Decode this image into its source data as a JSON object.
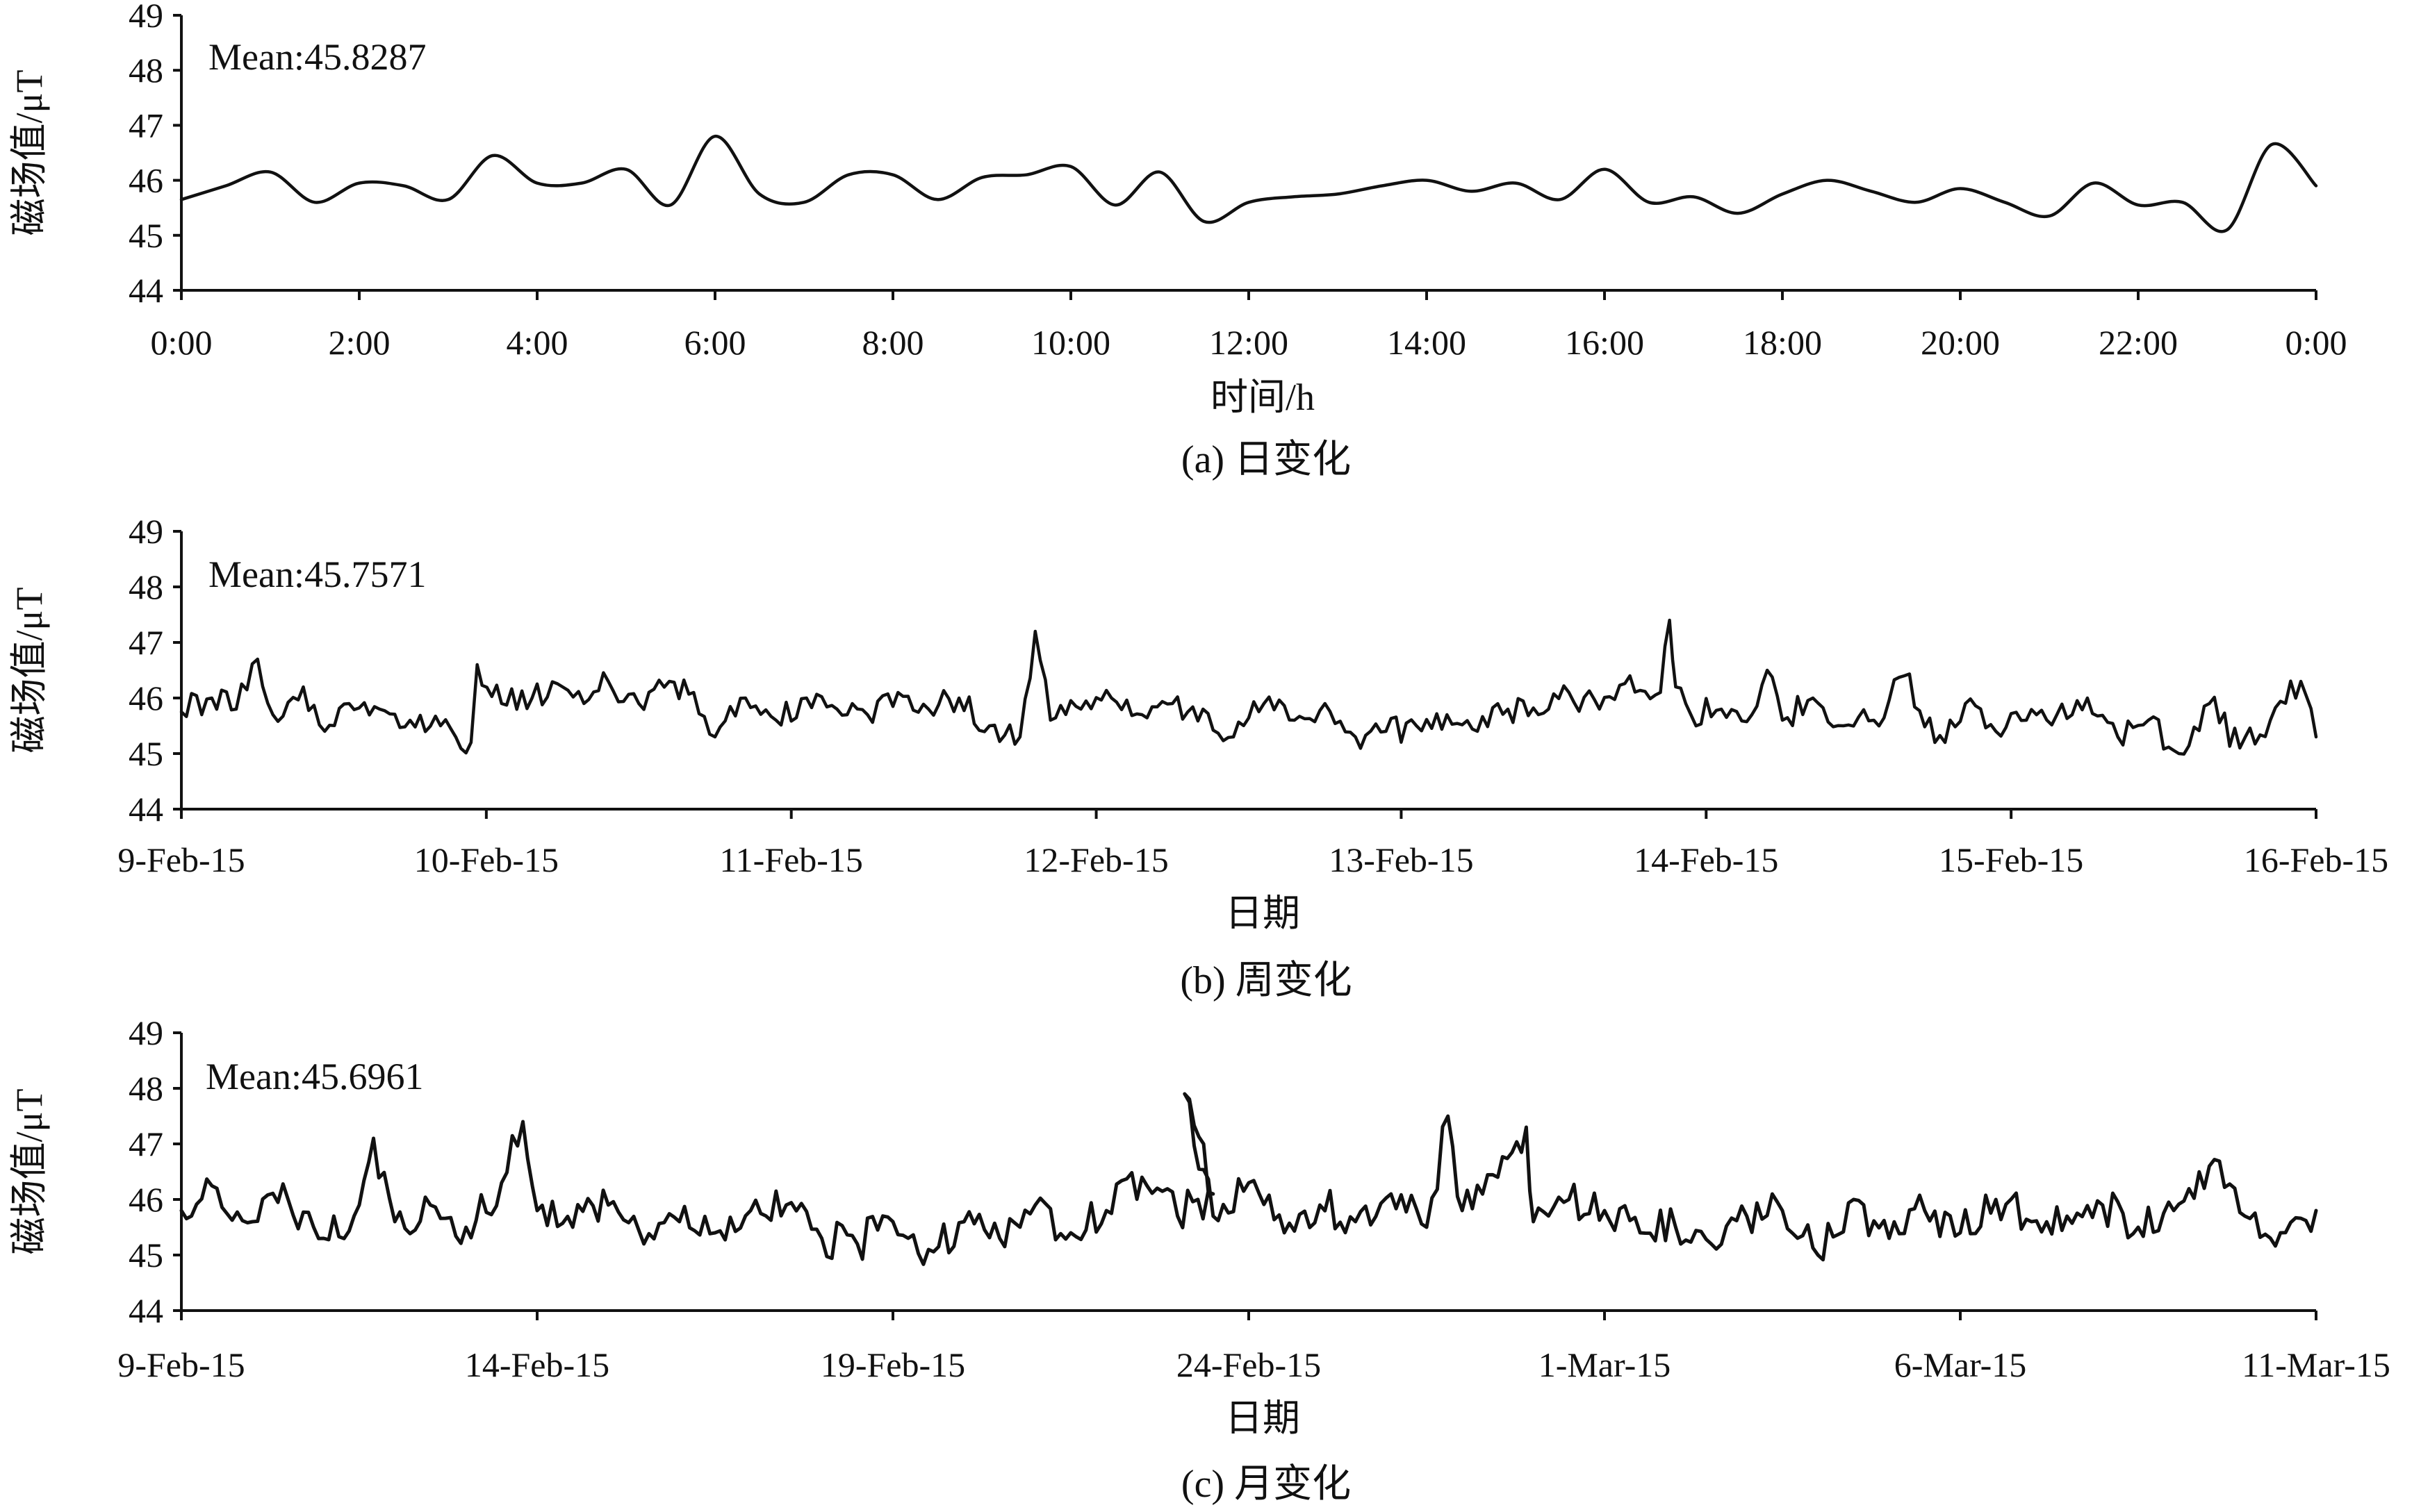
{
  "chart_data": [
    {
      "type": "line",
      "caption": "(a) 日变化",
      "xlabel": "时间/h",
      "ylabel": "磁场值/μT",
      "annotation": "Mean:45.8287",
      "ylim": [
        44,
        49
      ],
      "yticks": [
        "44",
        "45",
        "46",
        "47",
        "48",
        "49"
      ],
      "xlim": [
        0,
        24
      ],
      "xticks": [
        {
          "v": 0,
          "label": "0:00"
        },
        {
          "v": 2,
          "label": "2:00"
        },
        {
          "v": 4,
          "label": "4:00"
        },
        {
          "v": 6,
          "label": "6:00"
        },
        {
          "v": 8,
          "label": "8:00"
        },
        {
          "v": 10,
          "label": "10:00"
        },
        {
          "v": 12,
          "label": "12:00"
        },
        {
          "v": 14,
          "label": "14:00"
        },
        {
          "v": 16,
          "label": "16:00"
        },
        {
          "v": 18,
          "label": "18:00"
        },
        {
          "v": 20,
          "label": "20:00"
        },
        {
          "v": 22,
          "label": "22:00"
        },
        {
          "v": 24,
          "label": "0:00"
        }
      ],
      "series": [
        {
          "x": [
            0,
            0.5,
            1.0,
            1.5,
            2.0,
            2.5,
            3.0,
            3.5,
            4.0,
            4.5,
            5.0,
            5.5,
            6.0,
            6.5,
            7.0,
            7.5,
            8.0,
            8.5,
            9.0,
            9.5,
            10.0,
            10.5,
            11.0,
            11.5,
            12.0,
            12.5,
            13.0,
            13.5,
            14.0,
            14.5,
            15.0,
            15.5,
            16.0,
            16.5,
            17.0,
            17.5,
            18.0,
            18.5,
            19.0,
            19.5,
            20.0,
            20.5,
            21.0,
            21.5,
            22.0,
            22.5,
            23.0,
            23.5,
            24.0
          ],
          "y": [
            45.65,
            45.9,
            46.15,
            45.6,
            45.95,
            45.9,
            45.65,
            46.45,
            45.95,
            45.95,
            46.2,
            45.55,
            46.8,
            45.75,
            45.6,
            46.1,
            46.1,
            45.65,
            46.05,
            46.1,
            46.25,
            45.55,
            46.15,
            45.25,
            45.6,
            45.7,
            45.75,
            45.9,
            46.0,
            45.8,
            45.95,
            45.65,
            46.2,
            45.6,
            45.7,
            45.4,
            45.75,
            46.0,
            45.8,
            45.6,
            45.85,
            45.6,
            45.35,
            45.95,
            45.55,
            45.6,
            45.1,
            46.65,
            45.9
          ]
        }
      ]
    },
    {
      "type": "line",
      "caption": "(b) 周变化",
      "xlabel": "日期",
      "ylabel": "磁场值/μT",
      "annotation": "Mean:45.7571",
      "ylim": [
        44,
        49
      ],
      "yticks": [
        "44",
        "45",
        "46",
        "47",
        "48",
        "49"
      ],
      "xlim": [
        0,
        7
      ],
      "xticks": [
        {
          "v": 0,
          "label": "9-Feb-15"
        },
        {
          "v": 1,
          "label": "10-Feb-15"
        },
        {
          "v": 2,
          "label": "11-Feb-15"
        },
        {
          "v": 3,
          "label": "12-Feb-15"
        },
        {
          "v": 4,
          "label": "13-Feb-15"
        },
        {
          "v": 5,
          "label": "14-Feb-15"
        },
        {
          "v": 6,
          "label": "15-Feb-15"
        },
        {
          "v": 7,
          "label": "16-Feb-15"
        }
      ],
      "series": [
        {
          "x": [
            0,
            0.1,
            0.18,
            0.25,
            0.3,
            0.4,
            0.47,
            0.55,
            0.65,
            0.75,
            0.85,
            0.95,
            0.97,
            1.05,
            1.15,
            1.25,
            1.32,
            1.4,
            1.5,
            1.6,
            1.68,
            1.75,
            1.85,
            1.95,
            2.05,
            2.15,
            2.25,
            2.35,
            2.45,
            2.55,
            2.65,
            2.75,
            2.8,
            2.85,
            2.95,
            3.05,
            3.15,
            3.25,
            3.35,
            3.45,
            3.55,
            3.65,
            3.75,
            3.85,
            3.95,
            4.05,
            4.15,
            4.25,
            4.35,
            4.45,
            4.55,
            4.65,
            4.75,
            4.85,
            4.88,
            4.9,
            4.95,
            5.05,
            5.15,
            5.2,
            5.25,
            5.35,
            5.45,
            5.55,
            5.65,
            5.75,
            5.85,
            5.95,
            6.05,
            6.15,
            6.25,
            6.35,
            6.45,
            6.55,
            6.65,
            6.75,
            6.85,
            6.95,
            7.0
          ],
          "y": [
            45.75,
            46.0,
            45.8,
            46.7,
            45.7,
            46.2,
            45.4,
            45.9,
            45.8,
            45.6,
            45.5,
            45.2,
            46.6,
            45.9,
            46.0,
            46.2,
            45.9,
            46.3,
            45.9,
            46.3,
            46.1,
            45.3,
            46.0,
            45.6,
            46.0,
            45.8,
            45.7,
            46.1,
            45.8,
            46.0,
            45.5,
            45.3,
            47.2,
            45.6,
            45.8,
            46.0,
            45.7,
            45.9,
            45.8,
            45.3,
            45.9,
            45.6,
            45.9,
            45.3,
            45.4,
            45.5,
            45.7,
            45.4,
            45.8,
            45.7,
            46.1,
            45.8,
            46.4,
            46.1,
            47.4,
            46.2,
            45.7,
            45.8,
            45.7,
            46.5,
            45.6,
            46.0,
            45.5,
            45.6,
            46.4,
            45.2,
            45.9,
            45.4,
            45.6,
            45.7,
            46.0,
            45.3,
            45.6,
            45.0,
            45.9,
            45.1,
            45.6,
            46.3,
            45.3
          ]
        }
      ]
    },
    {
      "type": "line",
      "caption": "(c) 月变化",
      "xlabel": "日期",
      "ylabel": "磁场值/μT",
      "annotation": "Mean:45.6961",
      "ylim": [
        44,
        49
      ],
      "yticks": [
        "44",
        "45",
        "46",
        "47",
        "48",
        "49"
      ],
      "xlim": [
        0,
        30
      ],
      "xticks": [
        {
          "v": 0,
          "label": "9-Feb-15"
        },
        {
          "v": 5,
          "label": "14-Feb-15"
        },
        {
          "v": 10,
          "label": "19-Feb-15"
        },
        {
          "v": 15,
          "label": "24-Feb-15"
        },
        {
          "v": 20,
          "label": "1-Mar-15"
        },
        {
          "v": 25,
          "label": "6-Mar-15"
        },
        {
          "v": 30,
          "label": "11-Mar-15"
        }
      ],
      "series": [
        {
          "x": [
            0,
            0.5,
            1.0,
            1.5,
            2.0,
            2.5,
            2.7,
            3.0,
            3.5,
            4.0,
            4.5,
            4.8,
            5.0,
            5.5,
            6.0,
            6.5,
            7.0,
            7.5,
            8.0,
            8.5,
            9.0,
            9.5,
            10.0,
            10.5,
            11.0,
            11.5,
            12.0,
            12.5,
            13.0,
            13.5,
            14.0,
            14.5,
            14.1,
            14.5,
            15.0,
            15.5,
            16.0,
            16.5,
            17.0,
            17.5,
            17.8,
            18.0,
            18.5,
            18.9,
            19.0,
            19.5,
            20.0,
            20.5,
            21.0,
            21.5,
            22.0,
            22.5,
            23.0,
            23.5,
            24.0,
            24.5,
            25.0,
            25.5,
            26.0,
            26.5,
            27.0,
            27.5,
            28.0,
            28.5,
            29.0,
            29.5,
            30.0
          ],
          "y": [
            45.8,
            46.2,
            45.6,
            46.0,
            45.3,
            45.9,
            47.1,
            45.6,
            45.9,
            45.5,
            46.3,
            47.4,
            45.8,
            45.5,
            45.9,
            45.2,
            45.6,
            45.4,
            45.8,
            45.9,
            45.3,
            45.2,
            45.6,
            45.1,
            45.6,
            45.3,
            45.9,
            45.4,
            45.8,
            46.4,
            45.7,
            46.1,
            47.9,
            45.7,
            46.3,
            45.4,
            45.9,
            45.6,
            46.1,
            45.5,
            47.5,
            45.8,
            46.4,
            47.3,
            45.6,
            46.0,
            45.8,
            45.4,
            45.5,
            45.2,
            45.7,
            45.8,
            45.0,
            46.0,
            45.3,
            45.8,
            45.4,
            46.0,
            45.6,
            45.7,
            45.9,
            45.5,
            45.8,
            46.6,
            45.7,
            45.4,
            45.8
          ]
        }
      ]
    }
  ]
}
